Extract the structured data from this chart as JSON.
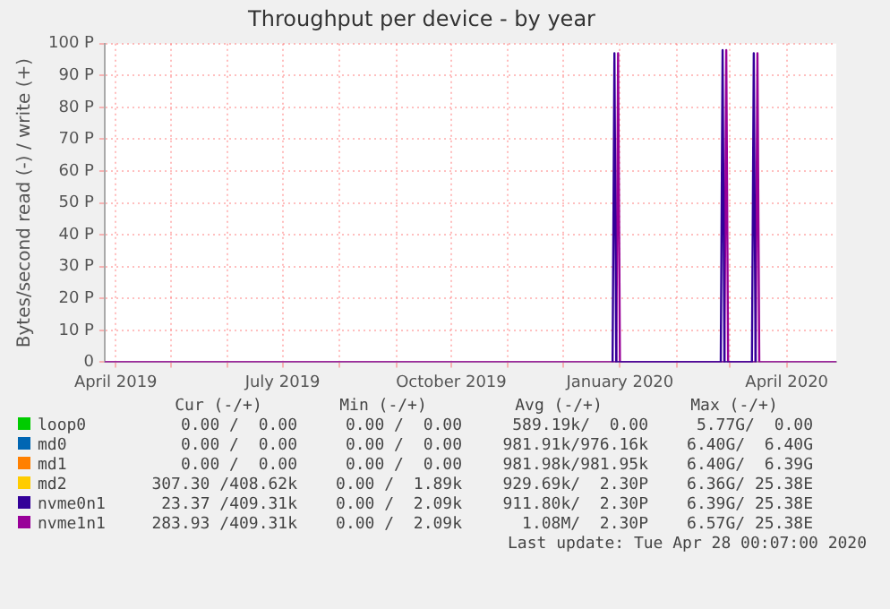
{
  "chart_data": {
    "type": "line",
    "title": "Throughput per device - by year",
    "ylabel": "Bytes/second read (-) / write (+)",
    "xlim": [
      "2019-03-26",
      "2020-04-28"
    ],
    "xticks": [
      {
        "value": "2019-04-01",
        "label": "April 2019"
      },
      {
        "value": "2019-05-01",
        "label": null
      },
      {
        "value": "2019-06-01",
        "label": null
      },
      {
        "value": "2019-07-01",
        "label": "July 2019"
      },
      {
        "value": "2019-08-01",
        "label": null
      },
      {
        "value": "2019-09-01",
        "label": null
      },
      {
        "value": "2019-10-01",
        "label": "October 2019"
      },
      {
        "value": "2019-11-01",
        "label": null
      },
      {
        "value": "2019-12-01",
        "label": null
      },
      {
        "value": "2020-01-01",
        "label": "January 2020"
      },
      {
        "value": "2020-02-01",
        "label": null
      },
      {
        "value": "2020-03-01",
        "label": null
      },
      {
        "value": "2020-04-01",
        "label": "April 2020"
      }
    ],
    "ylim": [
      0,
      100
    ],
    "yticks": [
      0,
      {
        "value": 10,
        "label": "10 P"
      },
      {
        "value": 20,
        "label": "20 P"
      },
      {
        "value": 30,
        "label": "30 P"
      },
      {
        "value": 40,
        "label": "40 P"
      },
      {
        "value": 50,
        "label": "50 P"
      },
      {
        "value": 60,
        "label": "60 P"
      },
      {
        "value": 70,
        "label": "70 P"
      },
      {
        "value": 80,
        "label": "80 P"
      },
      {
        "value": 90,
        "label": "90 P"
      },
      {
        "value": 100,
        "label": "100 P"
      }
    ],
    "grid": true,
    "legend": "bottom",
    "marker": "none",
    "line_style": "solid",
    "series": [
      {
        "name": "loop0",
        "color": "#00cc00"
      },
      {
        "name": "md0",
        "color": "#0066b3"
      },
      {
        "name": "md1",
        "color": "#ff8000"
      },
      {
        "name": "md2",
        "color": "#ffcc00"
      },
      {
        "name": "nvme0n1",
        "color": "#330099",
        "x": [
          "2019-12-28",
          "2019-12-29",
          "2019-12-30",
          "2020-02-25",
          "2020-02-26",
          "2020-02-27",
          "2020-03-13",
          "2020-03-14",
          "2020-03-15"
        ],
        "values": [
          0,
          97,
          0,
          0,
          98,
          0,
          0,
          97,
          0
        ]
      },
      {
        "name": "nvme1n1",
        "color": "#990099",
        "x": [
          "2019-03-26",
          "2019-12-30",
          "2019-12-31",
          "2020-01-01",
          "2020-02-27",
          "2020-02-28",
          "2020-02-29",
          "2020-03-15",
          "2020-03-16",
          "2020-03-17",
          "2020-04-28"
        ],
        "values": [
          0,
          0,
          97,
          0,
          0,
          98,
          0,
          0,
          97,
          0,
          0
        ]
      }
    ],
    "annotations": [
      "Cur (-/+)",
      "Min (-/+)",
      "Avg (-/+)",
      "Max (-/+)",
      "0.00 /  0.00",
      "0.00 /  0.00",
      "589.19k/  0.00",
      "5.77G/  0.00",
      "0.00 /  0.00",
      "0.00 /  0.00",
      "981.91k/976.16k",
      "6.40G/  6.40G",
      "0.00 /  0.00",
      "0.00 /  0.00",
      "981.98k/981.95k",
      "6.40G/  6.39G",
      "307.30 /408.62k",
      "0.00 /  1.89k",
      "929.69k/  2.30P",
      "6.36G/ 25.38E",
      "23.37 /409.31k",
      "0.00 /  2.09k",
      "911.80k/  2.30P",
      "6.39G/ 25.38E",
      "283.93 /409.31k",
      "0.00 /  2.09k",
      "1.08M/  2.30P",
      "6.57G/ 25.38E",
      "Last update: Tue Apr 28 00:07:00 2020"
    ]
  }
}
